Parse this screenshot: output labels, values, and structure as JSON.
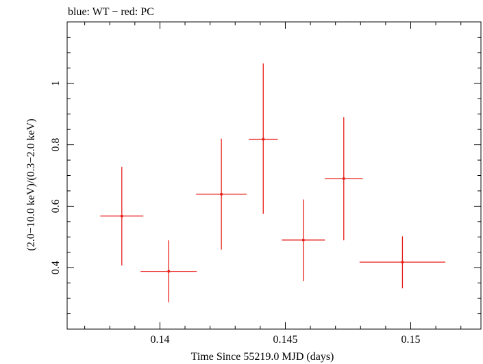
{
  "chart_data": {
    "type": "scatter",
    "title": "blue: WT − red: PC",
    "xlabel": "Time Since 55219.0 MJD (days)",
    "ylabel": "(2.0−10.0 keV)/(0.3−2.0 keV)",
    "xlim": [
      0.1363,
      0.1528
    ],
    "ylim": [
      0.2,
      1.2
    ],
    "x_ticks": [
      0.14,
      0.145,
      0.15
    ],
    "x_tick_labels": [
      "0.14",
      "0.145",
      "0.15"
    ],
    "y_ticks": [
      0.4,
      0.6,
      0.8,
      1.0
    ],
    "y_tick_labels": [
      "0.4",
      "0.6",
      "0.8",
      "1"
    ],
    "grid": false,
    "series": [
      {
        "name": "PC",
        "color": "#e8201a",
        "points": [
          {
            "x": 0.13848,
            "xerr": 0.00086,
            "y": 0.568,
            "y_low": 0.407,
            "y_high": 0.728
          },
          {
            "x": 0.14035,
            "xerr": 0.00112,
            "y": 0.388,
            "y_low": 0.287,
            "y_high": 0.489
          },
          {
            "x": 0.14245,
            "xerr": 0.00101,
            "y": 0.639,
            "y_low": 0.459,
            "y_high": 0.82
          },
          {
            "x": 0.14412,
            "xerr": 0.00058,
            "y": 0.818,
            "y_low": 0.575,
            "y_high": 1.065
          },
          {
            "x": 0.14572,
            "xerr": 0.00086,
            "y": 0.49,
            "y_low": 0.356,
            "y_high": 0.622
          },
          {
            "x": 0.14733,
            "xerr": 0.00076,
            "y": 0.69,
            "y_low": 0.489,
            "y_high": 0.89
          },
          {
            "x": 0.14967,
            "xerr": 0.00171,
            "y": 0.418,
            "y_low": 0.333,
            "y_high": 0.502
          }
        ]
      }
    ]
  }
}
